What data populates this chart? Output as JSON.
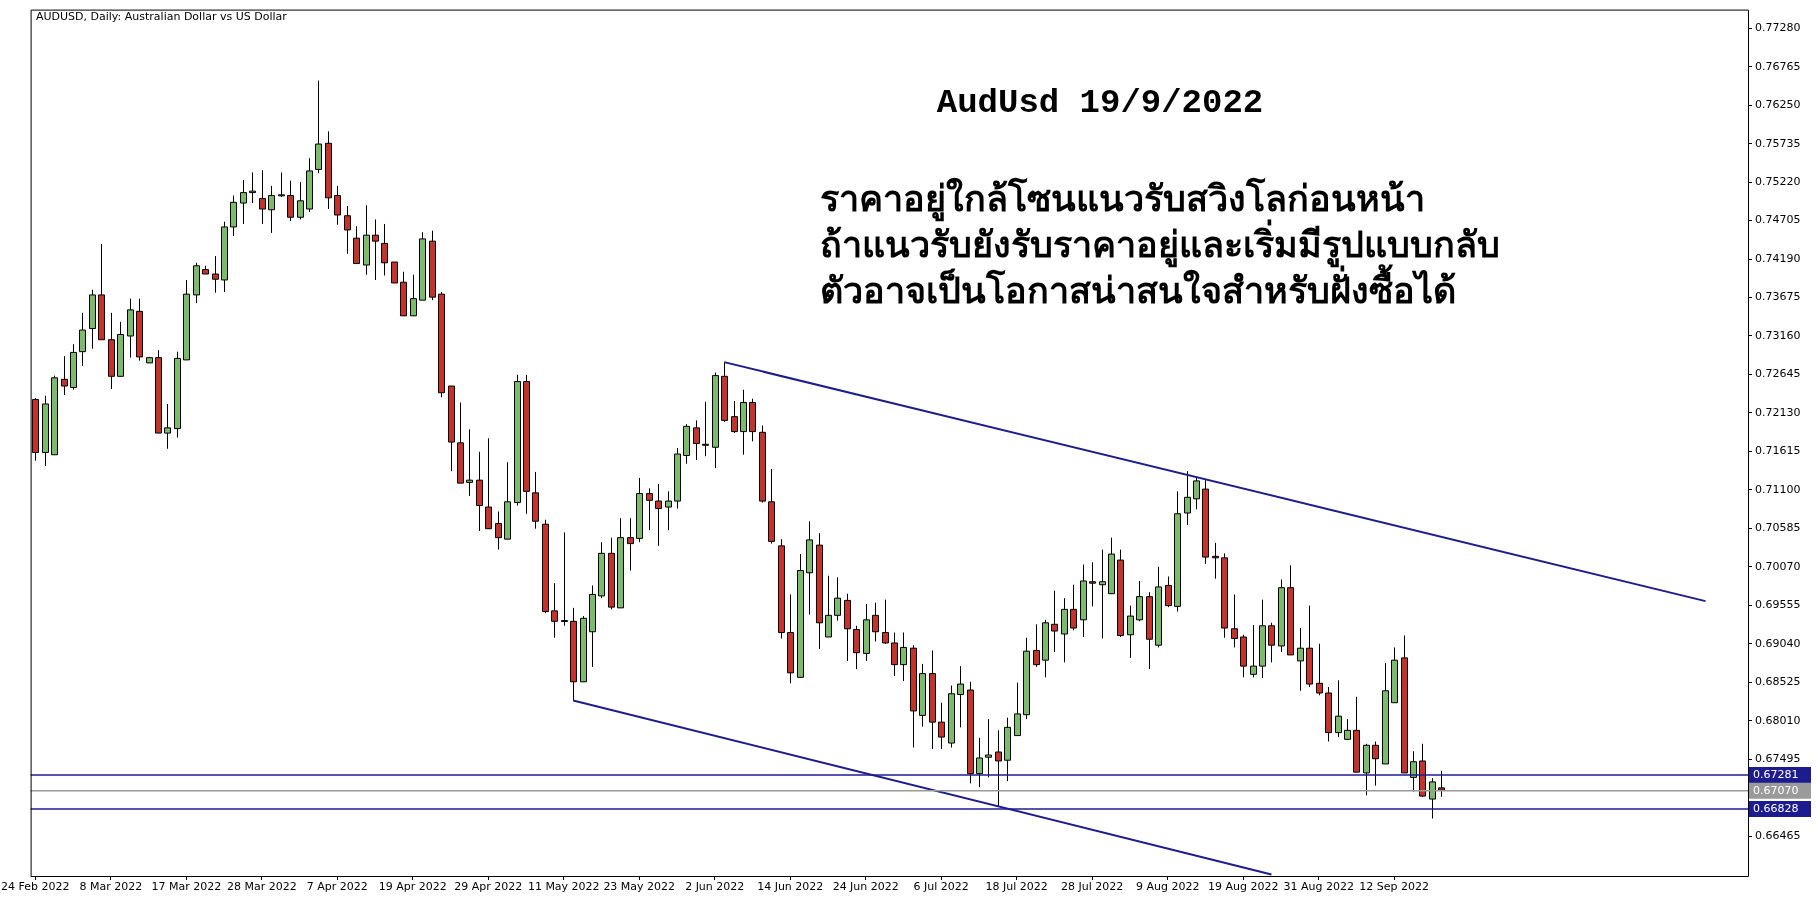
{
  "chart_data": {
    "type": "candlestick",
    "title": "AUDUSD, Daily: Australian Dollar vs US Dollar",
    "subtitle": "AudUsd 19/9/2022",
    "annotations": [
      "ราคาอยู่ใกล้โซนแนวรับสวิงโลก่อนหน้า",
      "ถ้าแนวรับยังรับราคาอยู่และเริ่มมีรูปแบบกลับ",
      "ตัวอาจเป็นโอกาสน่าสนใจสำหรับฝั่งซื้อได้"
    ],
    "categories": [
      "24 Feb 2022",
      null,
      null,
      null,
      null,
      null,
      null,
      null,
      "8 Mar 2022",
      null,
      null,
      null,
      null,
      null,
      null,
      null,
      "17 Mar 2022",
      null,
      null,
      null,
      null,
      null,
      null,
      null,
      "28 Mar 2022",
      null,
      null,
      null,
      null,
      null,
      null,
      null,
      "7 Apr 2022",
      null,
      null,
      null,
      null,
      null,
      null,
      null,
      "19 Apr 2022",
      null,
      null,
      null,
      null,
      null,
      null,
      null,
      "29 Apr 2022",
      null,
      null,
      null,
      null,
      null,
      null,
      null,
      "11 May 2022",
      null,
      null,
      null,
      null,
      null,
      null,
      null,
      "23 May 2022",
      null,
      null,
      null,
      null,
      null,
      null,
      null,
      "2 Jun 2022",
      null,
      null,
      null,
      null,
      null,
      null,
      null,
      "14 Jun 2022",
      null,
      null,
      null,
      null,
      null,
      null,
      null,
      "24 Jun 2022",
      null,
      null,
      null,
      null,
      null,
      null,
      null,
      "6 Jul 2022",
      null,
      null,
      null,
      null,
      null,
      null,
      null,
      "18 Jul 2022",
      null,
      null,
      null,
      null,
      null,
      null,
      null,
      "28 Jul 2022",
      null,
      null,
      null,
      null,
      null,
      null,
      null,
      "9 Aug 2022",
      null,
      null,
      null,
      null,
      null,
      null,
      null,
      "19 Aug 2022",
      null,
      null,
      null,
      null,
      null,
      null,
      null,
      "31 Aug 2022",
      null,
      null,
      null,
      null,
      null,
      null,
      null,
      "12 Sep 2022",
      null,
      null,
      null,
      null,
      null,
      null,
      null,
      null,
      null,
      null,
      null,
      null,
      null,
      null,
      null,
      null,
      null,
      null,
      null,
      null,
      null,
      null,
      null,
      null,
      null,
      null,
      null,
      null,
      null,
      null,
      null,
      null,
      null,
      null,
      null,
      null,
      null
    ],
    "ohlc": [
      [
        0.7231,
        0.7233,
        0.7149,
        0.716
      ],
      [
        0.716,
        0.7236,
        0.7142,
        0.7225
      ],
      [
        0.7157,
        0.7263,
        0.7157,
        0.726
      ],
      [
        0.7258,
        0.7289,
        0.7237,
        0.7249
      ],
      [
        0.7247,
        0.7305,
        0.7244,
        0.7294
      ],
      [
        0.7295,
        0.7347,
        0.7276,
        0.7324
      ],
      [
        0.7326,
        0.7378,
        0.7299,
        0.7371
      ],
      [
        0.7371,
        0.7439,
        0.7311,
        0.7311
      ],
      [
        0.7311,
        0.7347,
        0.7245,
        0.7262
      ],
      [
        0.7262,
        0.7335,
        0.7262,
        0.7318
      ],
      [
        0.7316,
        0.7366,
        0.7287,
        0.7351
      ],
      [
        0.7349,
        0.7366,
        0.7283,
        0.7288
      ],
      [
        0.728,
        0.7288,
        0.728,
        0.7287
      ],
      [
        0.7287,
        0.7297,
        0.7186,
        0.7186
      ],
      [
        0.7186,
        0.7225,
        0.7165,
        0.7193
      ],
      [
        0.7192,
        0.7295,
        0.718,
        0.7286
      ],
      [
        0.7284,
        0.7391,
        0.7284,
        0.7372
      ],
      [
        0.7371,
        0.7414,
        0.736,
        0.741
      ],
      [
        0.7405,
        0.741,
        0.7399,
        0.7399
      ],
      [
        0.7399,
        0.7423,
        0.7374,
        0.7392
      ],
      [
        0.7391,
        0.7469,
        0.7375,
        0.7462
      ],
      [
        0.7462,
        0.7504,
        0.745,
        0.7495
      ],
      [
        0.7494,
        0.7525,
        0.7466,
        0.7508
      ],
      [
        0.7508,
        0.7535,
        0.7494,
        0.751
      ],
      [
        0.75,
        0.7538,
        0.7466,
        0.7486
      ],
      [
        0.7485,
        0.7517,
        0.7454,
        0.7504
      ],
      [
        0.7504,
        0.7535,
        0.7502,
        0.7505
      ],
      [
        0.7504,
        0.7524,
        0.747,
        0.7475
      ],
      [
        0.7475,
        0.7522,
        0.7472,
        0.7497
      ],
      [
        0.7486,
        0.7554,
        0.7482,
        0.7537
      ],
      [
        0.7539,
        0.7658,
        0.7534,
        0.7573
      ],
      [
        0.7574,
        0.759,
        0.7486,
        0.7501
      ],
      [
        0.7504,
        0.7517,
        0.7465,
        0.7478
      ],
      [
        0.7477,
        0.749,
        0.7426,
        0.7458
      ],
      [
        0.7447,
        0.7463,
        0.7413,
        0.7413
      ],
      [
        0.7411,
        0.7491,
        0.7398,
        0.7451
      ],
      [
        0.7451,
        0.7472,
        0.7391,
        0.7443
      ],
      [
        0.744,
        0.7466,
        0.7397,
        0.7414
      ],
      [
        0.7415,
        0.7415,
        0.7387,
        0.7387
      ],
      [
        0.7388,
        0.7402,
        0.7343,
        0.7343
      ],
      [
        0.7343,
        0.7398,
        0.7343,
        0.7366
      ],
      [
        0.7364,
        0.7455,
        0.7364,
        0.7446
      ],
      [
        0.7443,
        0.7457,
        0.7364,
        0.7368
      ],
      [
        0.7372,
        0.7375,
        0.7234,
        0.724
      ],
      [
        0.7249,
        0.7249,
        0.7135,
        0.7174
      ],
      [
        0.7173,
        0.7227,
        0.7119,
        0.7119
      ],
      [
        0.712,
        0.7191,
        0.7102,
        0.7123
      ],
      [
        0.7123,
        0.7161,
        0.7055,
        0.7089
      ],
      [
        0.7087,
        0.7179,
        0.7058,
        0.7058
      ],
      [
        0.7065,
        0.7081,
        0.703,
        0.7046
      ],
      [
        0.7044,
        0.7147,
        0.7044,
        0.7094
      ],
      [
        0.7093,
        0.7264,
        0.7089,
        0.7255
      ],
      [
        0.7255,
        0.7264,
        0.7078,
        0.7108
      ],
      [
        0.7106,
        0.7134,
        0.7058,
        0.7068
      ],
      [
        0.7064,
        0.707,
        0.6945,
        0.6947
      ],
      [
        0.6948,
        0.6985,
        0.6912,
        0.6934
      ],
      [
        0.6935,
        0.7053,
        0.6928,
        0.6934
      ],
      [
        0.6934,
        0.6952,
        0.6828,
        0.6853
      ],
      [
        0.6853,
        0.6941,
        0.6853,
        0.6938
      ],
      [
        0.692,
        0.6982,
        0.6873,
        0.697
      ],
      [
        0.6968,
        0.704,
        0.6965,
        0.7025
      ],
      [
        0.7025,
        0.7046,
        0.695,
        0.6953
      ],
      [
        0.6952,
        0.7072,
        0.6952,
        0.7046
      ],
      [
        0.7046,
        0.7072,
        0.7002,
        0.7038
      ],
      [
        0.7045,
        0.7126,
        0.704,
        0.7105
      ],
      [
        0.7105,
        0.7112,
        0.7056,
        0.7096
      ],
      [
        0.7095,
        0.7118,
        0.7035,
        0.7085
      ],
      [
        0.7087,
        0.7108,
        0.7056,
        0.7095
      ],
      [
        0.7095,
        0.7166,
        0.7085,
        0.7158
      ],
      [
        0.7156,
        0.7198,
        0.7145,
        0.7195
      ],
      [
        0.7193,
        0.7203,
        0.715,
        0.7172
      ],
      [
        0.7171,
        0.7228,
        0.7155,
        0.717
      ],
      [
        0.7167,
        0.7267,
        0.7139,
        0.7263
      ],
      [
        0.7262,
        0.7281,
        0.7201,
        0.7203
      ],
      [
        0.7208,
        0.7229,
        0.7186,
        0.7188
      ],
      [
        0.7188,
        0.7244,
        0.7157,
        0.7227
      ],
      [
        0.7227,
        0.7232,
        0.7175,
        0.7188
      ],
      [
        0.7187,
        0.7196,
        0.7093,
        0.7095
      ],
      [
        0.7094,
        0.7138,
        0.7038,
        0.7041
      ],
      [
        0.7035,
        0.7044,
        0.6911,
        0.6919
      ],
      [
        0.6919,
        0.697,
        0.6851,
        0.6865
      ],
      [
        0.6859,
        0.7024,
        0.6859,
        0.7002
      ],
      [
        0.6999,
        0.7068,
        0.6943,
        0.7043
      ],
      [
        0.7036,
        0.7052,
        0.6897,
        0.6932
      ],
      [
        0.6913,
        0.6995,
        0.6913,
        0.6942
      ],
      [
        0.6942,
        0.6993,
        0.6935,
        0.6965
      ],
      [
        0.6962,
        0.6971,
        0.6881,
        0.6924
      ],
      [
        0.6923,
        0.6928,
        0.687,
        0.6892
      ],
      [
        0.6891,
        0.6957,
        0.6881,
        0.6936
      ],
      [
        0.6942,
        0.6959,
        0.6907,
        0.692
      ],
      [
        0.6919,
        0.6963,
        0.6904,
        0.6905
      ],
      [
        0.6905,
        0.6919,
        0.6861,
        0.6876
      ],
      [
        0.6876,
        0.6919,
        0.6854,
        0.6899
      ],
      [
        0.6898,
        0.6902,
        0.6765,
        0.6814
      ],
      [
        0.6808,
        0.6877,
        0.6793,
        0.6864
      ],
      [
        0.6864,
        0.6895,
        0.6763,
        0.6799
      ],
      [
        0.6799,
        0.6825,
        0.6763,
        0.6779
      ],
      [
        0.6771,
        0.6848,
        0.6765,
        0.6837
      ],
      [
        0.6836,
        0.6874,
        0.6792,
        0.685
      ],
      [
        0.6842,
        0.6853,
        0.6717,
        0.673
      ],
      [
        0.673,
        0.6778,
        0.6712,
        0.6751
      ],
      [
        0.6752,
        0.6803,
        0.6725,
        0.6755
      ],
      [
        0.6759,
        0.6788,
        0.6686,
        0.6747
      ],
      [
        0.6748,
        0.6805,
        0.672,
        0.6792
      ],
      [
        0.6781,
        0.6852,
        0.6781,
        0.681
      ],
      [
        0.6809,
        0.6912,
        0.6803,
        0.6894
      ],
      [
        0.6895,
        0.693,
        0.6873,
        0.6876
      ],
      [
        0.6882,
        0.6936,
        0.6859,
        0.6932
      ],
      [
        0.693,
        0.6975,
        0.6893,
        0.6921
      ],
      [
        0.6917,
        0.6965,
        0.6879,
        0.695
      ],
      [
        0.695,
        0.6983,
        0.6922,
        0.6925
      ],
      [
        0.6936,
        0.701,
        0.6913,
        0.6988
      ],
      [
        0.6987,
        0.7013,
        0.6954,
        0.6985
      ],
      [
        0.6983,
        0.703,
        0.6911,
        0.6987
      ],
      [
        0.6971,
        0.7046,
        0.6971,
        0.7024
      ],
      [
        0.7016,
        0.703,
        0.6913,
        0.6915
      ],
      [
        0.6916,
        0.6955,
        0.6885,
        0.6941
      ],
      [
        0.6936,
        0.6988,
        0.6934,
        0.6967
      ],
      [
        0.6967,
        0.6973,
        0.687,
        0.691
      ],
      [
        0.6902,
        0.7007,
        0.6899,
        0.698
      ],
      [
        0.6982,
        0.6994,
        0.6953,
        0.6955
      ],
      [
        0.6954,
        0.7108,
        0.6947,
        0.7078
      ],
      [
        0.7079,
        0.7135,
        0.7063,
        0.71
      ],
      [
        0.7098,
        0.7126,
        0.7084,
        0.7122
      ],
      [
        0.7111,
        0.7123,
        0.7011,
        0.702
      ],
      [
        0.7021,
        0.7039,
        0.6991,
        0.7019
      ],
      [
        0.7019,
        0.7025,
        0.6912,
        0.6925
      ],
      [
        0.6924,
        0.697,
        0.6899,
        0.6911
      ],
      [
        0.6913,
        0.6916,
        0.6859,
        0.6874
      ],
      [
        0.6863,
        0.6929,
        0.6859,
        0.6874
      ],
      [
        0.6874,
        0.6963,
        0.6858,
        0.6928
      ],
      [
        0.6928,
        0.6932,
        0.6879,
        0.6902
      ],
      [
        0.6901,
        0.699,
        0.6893,
        0.6979
      ],
      [
        0.6979,
        0.7009,
        0.6889,
        0.6889
      ],
      [
        0.6881,
        0.6925,
        0.6841,
        0.6898
      ],
      [
        0.6898,
        0.6955,
        0.6846,
        0.685
      ],
      [
        0.6851,
        0.6904,
        0.6835,
        0.6838
      ],
      [
        0.6838,
        0.6846,
        0.6773,
        0.6785
      ],
      [
        0.6785,
        0.6855,
        0.6779,
        0.6807
      ],
      [
        0.6776,
        0.6803,
        0.6775,
        0.6788
      ],
      [
        0.6788,
        0.6833,
        0.6732,
        0.6732
      ],
      [
        0.6731,
        0.677,
        0.6701,
        0.6768
      ],
      [
        0.6768,
        0.6773,
        0.6714,
        0.675
      ],
      [
        0.6743,
        0.6878,
        0.6743,
        0.6841
      ],
      [
        0.6825,
        0.6899,
        0.6825,
        0.6882
      ],
      [
        0.6885,
        0.6915,
        0.6731,
        0.6731
      ],
      [
        0.6725,
        0.676,
        0.6706,
        0.6746
      ],
      [
        0.6747,
        0.677,
        0.6699,
        0.67
      ],
      [
        0.6696,
        0.6724,
        0.667,
        0.6719
      ],
      [
        0.6711,
        0.6734,
        0.6699,
        0.6708
      ],
      null,
      null,
      null,
      null,
      null,
      null,
      null,
      null,
      null,
      null,
      null,
      null,
      null,
      null,
      null,
      null,
      null,
      null,
      null,
      null,
      null,
      null,
      null,
      null,
      null,
      null,
      null,
      null,
      null,
      null,
      null,
      null
    ],
    "colors": [
      "#c4332b",
      "#7cbb6c",
      "#7cbb6c",
      "#c4332b",
      "#7cbb6c",
      "#7cbb6c",
      "#7cbb6c",
      "#c4332b",
      "#c4332b",
      "#7cbb6c",
      "#7cbb6c",
      "#c4332b",
      "#7cbb6c",
      "#c4332b",
      "#7cbb6c",
      "#7cbb6c",
      "#7cbb6c",
      "#7cbb6c",
      "#c4332b",
      "#c4332b",
      "#7cbb6c",
      "#7cbb6c",
      "#7cbb6c",
      "#7cbb6c",
      "#c4332b",
      "#7cbb6c",
      "#7cbb6c",
      "#c4332b",
      "#7cbb6c",
      "#7cbb6c",
      "#7cbb6c",
      "#c4332b",
      "#c4332b",
      "#c4332b",
      "#c4332b",
      "#7cbb6c",
      "#c4332b",
      "#c4332b",
      "#c4332b",
      "#c4332b",
      "#7cbb6c",
      "#7cbb6c",
      "#c4332b",
      "#c4332b",
      "#c4332b",
      "#c4332b",
      "#7cbb6c",
      "#c4332b",
      "#c4332b",
      "#c4332b",
      "#7cbb6c",
      "#7cbb6c",
      "#c4332b",
      "#c4332b",
      "#c4332b",
      "#c4332b",
      "#c4332b",
      "#c4332b",
      "#7cbb6c",
      "#7cbb6c",
      "#7cbb6c",
      "#c4332b",
      "#7cbb6c",
      "#c4332b",
      "#7cbb6c",
      "#c4332b",
      "#c4332b",
      "#7cbb6c",
      "#7cbb6c",
      "#7cbb6c",
      "#c4332b",
      "#c4332b",
      "#7cbb6c",
      "#c4332b",
      "#c4332b",
      "#7cbb6c",
      "#c4332b",
      "#c4332b",
      "#c4332b",
      "#c4332b",
      "#c4332b",
      "#7cbb6c",
      "#7cbb6c",
      "#c4332b",
      "#7cbb6c",
      "#7cbb6c",
      "#c4332b",
      "#c4332b",
      "#7cbb6c",
      "#c4332b",
      "#c4332b",
      "#c4332b",
      "#7cbb6c",
      "#c4332b",
      "#7cbb6c",
      "#c4332b",
      "#c4332b",
      "#7cbb6c",
      "#7cbb6c",
      "#c4332b",
      "#7cbb6c",
      "#7cbb6c",
      "#c4332b",
      "#7cbb6c",
      "#7cbb6c",
      "#7cbb6c",
      "#c4332b",
      "#7cbb6c",
      "#c4332b",
      "#7cbb6c",
      "#c4332b",
      "#7cbb6c",
      "#c4332b",
      "#7cbb6c",
      "#7cbb6c",
      "#c4332b",
      "#7cbb6c",
      "#7cbb6c",
      "#c4332b",
      "#7cbb6c",
      "#c4332b",
      "#7cbb6c",
      "#7cbb6c",
      "#7cbb6c",
      "#c4332b",
      "#c4332b",
      "#c4332b",
      "#c4332b",
      "#c4332b",
      "#7cbb6c",
      "#7cbb6c",
      "#c4332b",
      "#7cbb6c",
      "#c4332b",
      "#7cbb6c",
      "#c4332b",
      "#c4332b",
      "#c4332b",
      "#7cbb6c",
      "#7cbb6c",
      "#c4332b",
      "#7cbb6c",
      "#c4332b",
      "#7cbb6c",
      "#7cbb6c",
      "#c4332b",
      "#7cbb6c",
      "#c4332b",
      "#7cbb6c",
      "#c4332b",
      null,
      null,
      null,
      null,
      null,
      null,
      null,
      null,
      null,
      null,
      null,
      null,
      null,
      null,
      null,
      null,
      null,
      null,
      null,
      null,
      null,
      null,
      null,
      null,
      null,
      null,
      null,
      null,
      null,
      null,
      null,
      null
    ],
    "series": [
      {
        "type": "line",
        "color": "#1c1c8f",
        "values": [
          null,
          null,
          null,
          null,
          null,
          null,
          null,
          null,
          null,
          null,
          null,
          null,
          null,
          null,
          null,
          null,
          null,
          null,
          null,
          null,
          null,
          null,
          null,
          null,
          null,
          null,
          null,
          null,
          null,
          null,
          null,
          null,
          null,
          null,
          null,
          null,
          null,
          null,
          null,
          null,
          null,
          null,
          null,
          null,
          null,
          null,
          null,
          null,
          null,
          null,
          null,
          null,
          null,
          null,
          null,
          null,
          null,
          null,
          null,
          null,
          null,
          null,
          null,
          null,
          null,
          null,
          null,
          null,
          null,
          null,
          null,
          null,
          null,
          0.7281,
          null,
          null,
          null,
          null,
          null,
          null,
          null,
          null,
          null,
          null,
          null,
          null,
          null,
          null,
          null,
          null,
          null,
          null,
          null,
          null,
          null,
          null,
          null,
          null,
          null,
          null,
          null,
          null,
          null,
          null,
          null,
          null,
          null,
          null,
          null,
          null,
          null,
          null,
          null,
          null,
          null,
          null,
          null,
          null,
          null,
          null,
          null,
          null,
          null,
          null,
          null,
          null,
          null,
          null,
          null,
          null,
          null,
          null,
          null,
          null,
          null,
          null,
          null,
          null,
          null,
          null,
          null,
          null,
          null,
          null,
          null,
          null,
          null,
          null,
          null,
          null,
          null,
          null,
          null,
          null,
          null,
          null,
          null,
          null,
          null,
          null,
          null,
          null,
          null,
          null,
          null,
          null,
          null,
          null,
          null,
          null,
          null,
          null,
          null,
          null,
          null,
          null,
          null,
          0.6961,
          null,
          null,
          null,
          null
        ]
      },
      {
        "type": "line",
        "color": "#1c1c8f",
        "values": [
          null,
          null,
          null,
          null,
          null,
          null,
          null,
          null,
          null,
          null,
          null,
          null,
          null,
          null,
          null,
          null,
          null,
          null,
          null,
          null,
          null,
          null,
          null,
          null,
          null,
          null,
          null,
          null,
          null,
          null,
          null,
          null,
          null,
          null,
          null,
          null,
          null,
          null,
          null,
          null,
          null,
          null,
          null,
          null,
          null,
          null,
          null,
          null,
          null,
          null,
          null,
          null,
          null,
          null,
          null,
          null,
          null,
          0.6828,
          null,
          null,
          null,
          null,
          null,
          null,
          null,
          null,
          null,
          null,
          null,
          null,
          null,
          null,
          null,
          null,
          null,
          null,
          null,
          null,
          null,
          null,
          null,
          null,
          null,
          null,
          null,
          null,
          null,
          null,
          null,
          null,
          null,
          null,
          null,
          null,
          null,
          null,
          null,
          null,
          null,
          null,
          null,
          null,
          null,
          null,
          null,
          null,
          null,
          null,
          null,
          null,
          null,
          null,
          null,
          null,
          null,
          null,
          null,
          null,
          null,
          null,
          null,
          null,
          null,
          null,
          null,
          null,
          null,
          null,
          null,
          null,
          null,
          0.6595,
          null,
          null,
          null,
          null,
          null,
          null,
          null,
          null,
          null,
          null,
          null,
          null,
          null,
          null,
          null,
          null,
          null,
          null,
          null,
          null,
          null,
          null,
          null,
          null,
          null,
          null,
          null,
          null,
          null,
          null,
          null,
          null,
          null,
          null,
          null,
          null,
          null,
          null,
          null,
          null,
          null,
          null,
          null,
          null,
          null,
          null,
          null,
          null,
          null,
          null
        ]
      }
    ],
    "ylim": [
      0.6593,
      0.7753
    ],
    "yticks": [
      0.66465,
      0.67495,
      {
        "value": 0.6801,
        "label": "0.68010"
      },
      0.68525,
      {
        "value": 0.6904,
        "label": "0.69040"
      },
      0.69555,
      {
        "value": 0.7007,
        "label": "0.70070"
      },
      0.70585,
      {
        "value": 0.711,
        "label": "0.71100"
      },
      0.71615,
      {
        "value": 0.7213,
        "label": "0.72130"
      },
      0.72645,
      {
        "value": 0.7316,
        "label": "0.73160"
      },
      0.73675,
      {
        "value": 0.7419,
        "label": "0.74190"
      },
      0.74705,
      {
        "value": 0.7522,
        "label": "0.75220"
      },
      0.75735,
      {
        "value": 0.7625,
        "label": "0.76250"
      },
      0.76765,
      {
        "value": 0.7728,
        "label": "0.77280"
      }
    ],
    "ref_lines": [
      {
        "axis": "y",
        "value": 0.67281,
        "label": "0.67281",
        "color": "#1c1c8f"
      },
      {
        "axis": "y",
        "value": 0.6707,
        "label": "0.67070",
        "color": "#9a9a9a"
      },
      {
        "axis": "y",
        "value": 0.66828,
        "label": "0.66828",
        "color": "#1c1c8f"
      }
    ]
  }
}
